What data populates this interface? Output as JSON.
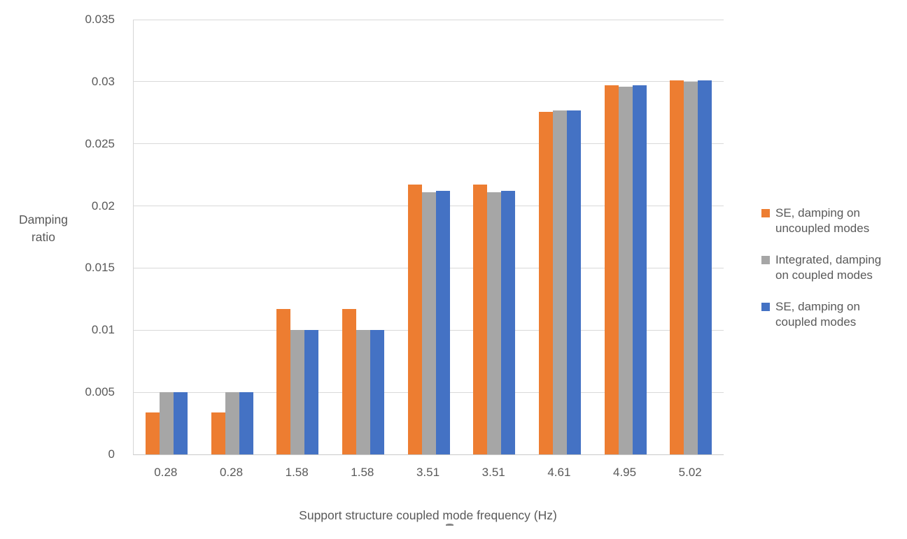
{
  "chart_data": {
    "type": "bar",
    "title": "",
    "xlabel": "Support structure coupled mode frequency (Hz)",
    "ylabel": "Damping ratio",
    "ylabel_lines": [
      "Damping",
      "ratio"
    ],
    "categories": [
      "0.28",
      "0.28",
      "1.58",
      "1.58",
      "3.51",
      "3.51",
      "4.61",
      "4.95",
      "5.02"
    ],
    "series": [
      {
        "name": "SE, damping on uncoupled modes",
        "color": "#ED7D31",
        "values": [
          0.0034,
          0.0034,
          0.0117,
          0.0117,
          0.0217,
          0.0217,
          0.0276,
          0.0297,
          0.0301
        ]
      },
      {
        "name": "Integrated, damping on coupled modes",
        "color": "#A6A6A6",
        "values": [
          0.005,
          0.005,
          0.01,
          0.01,
          0.0211,
          0.0211,
          0.0277,
          0.0296,
          0.03
        ]
      },
      {
        "name": "SE, damping on coupled modes",
        "color": "#4472C4",
        "values": [
          0.005,
          0.005,
          0.01,
          0.01,
          0.0212,
          0.0212,
          0.0277,
          0.0297,
          0.0301
        ]
      }
    ],
    "ylim": [
      0,
      0.035
    ],
    "yticks": [
      0,
      0.005,
      0.01,
      0.015,
      0.02,
      0.025,
      0.03,
      0.035
    ],
    "ytick_labels": [
      "0",
      "0.005",
      "0.01",
      "0.015",
      "0.02",
      "0.025",
      "0.03",
      "0.035"
    ],
    "grid": true,
    "legend_position": "right"
  },
  "legend": {
    "items": [
      {
        "label_lines": [
          "SE, damping on",
          "uncoupled modes"
        ],
        "color": "#ED7D31"
      },
      {
        "label_lines": [
          "Integrated, damping",
          "on coupled modes"
        ],
        "color": "#A6A6A6"
      },
      {
        "label_lines": [
          "SE, damping on",
          "coupled modes"
        ],
        "color": "#4472C4"
      }
    ]
  },
  "colors": {
    "text": "#595959",
    "gridline": "#D9D9D9",
    "axis_line": "#C9C9C9",
    "background": "#FFFFFF"
  }
}
